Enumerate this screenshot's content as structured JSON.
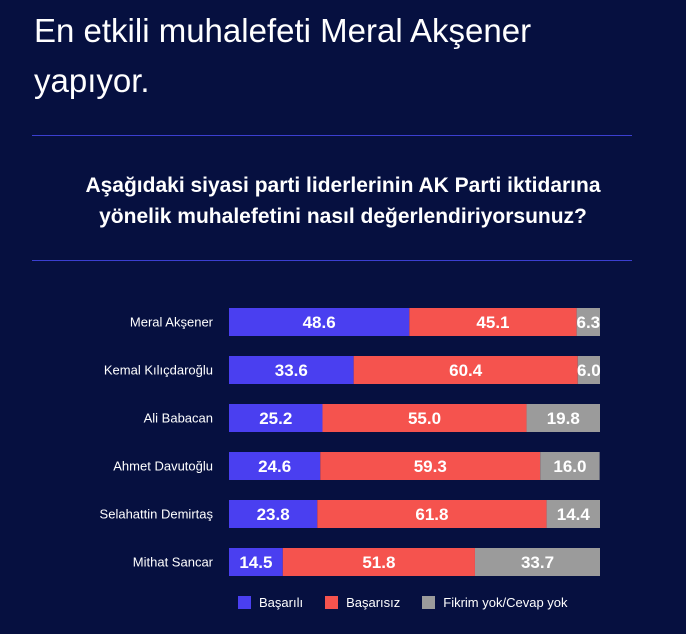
{
  "header": {
    "title": "En etkili muhalefeti Meral Akşener yapıyor."
  },
  "question": {
    "line1": "Aşağıdaki siyasi parti liderlerinin AK Parti iktidarına",
    "line2": "yönelik muhalefetini nasıl değerlendiriyorsunuz?"
  },
  "colors": {
    "basarili": "#4a3ff0",
    "basarisiz": "#f5534e",
    "fikrim_yok": "#9b9b9b"
  },
  "chart_data": {
    "type": "bar",
    "orientation": "horizontal",
    "stacked": true,
    "categories": [
      "Meral Akşener",
      "Kemal Kılıçdaroğlu",
      "Ali Babacan",
      "Ahmet Davutoğlu",
      "Selahattin Demirtaş",
      "Mithat Sancar"
    ],
    "series": [
      {
        "name": "Başarılı",
        "values": [
          48.6,
          33.6,
          25.2,
          24.6,
          23.8,
          14.5
        ]
      },
      {
        "name": "Başarısız",
        "values": [
          45.1,
          60.4,
          55.0,
          59.3,
          61.8,
          51.8
        ]
      },
      {
        "name": "Fikrim yok/Cevap yok",
        "values": [
          6.3,
          6.0,
          19.8,
          16.0,
          14.4,
          33.7
        ]
      }
    ],
    "xlim": [
      0,
      100
    ],
    "legend": "bottom"
  }
}
